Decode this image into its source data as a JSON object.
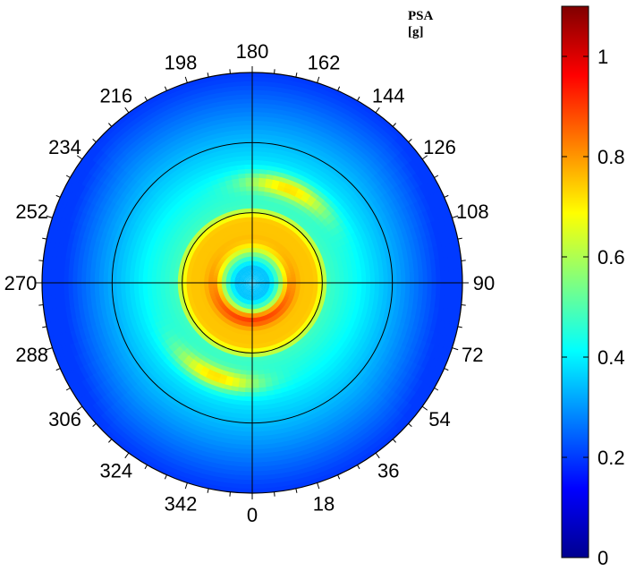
{
  "chart_data": {
    "type": "heatmap",
    "projection": "polar",
    "colorbar": {
      "title": "PSA",
      "unit": "[g]",
      "range": [
        0,
        1.1
      ],
      "ticks": [
        0,
        0.2,
        0.4,
        0.6,
        0.8,
        1
      ],
      "tick_labels": [
        "0",
        "0.2",
        "0.4",
        "0.6",
        "0.8",
        "1"
      ],
      "colormap": "jet"
    },
    "angular_axis": {
      "direction": "counterclockwise",
      "zero_position": "bottom",
      "ticks_deg": [
        0,
        18,
        36,
        54,
        72,
        90,
        108,
        126,
        144,
        162,
        180,
        198,
        216,
        234,
        252,
        270,
        288,
        306,
        324,
        342
      ],
      "tick_labels": [
        "0",
        "18",
        "36",
        "54",
        "72",
        "90",
        "108",
        "126",
        "144",
        "162",
        "180",
        "198",
        "216",
        "234",
        "252",
        "270",
        "288",
        "306",
        "324",
        "342"
      ]
    },
    "radial_grid_rings": 3,
    "field": {
      "center_value": 0.35,
      "inner_ring_peak": 1.05,
      "inner_ring_mean": 0.75,
      "crescent_peak": 0.7,
      "outer_edge_value": 0.2
    }
  }
}
